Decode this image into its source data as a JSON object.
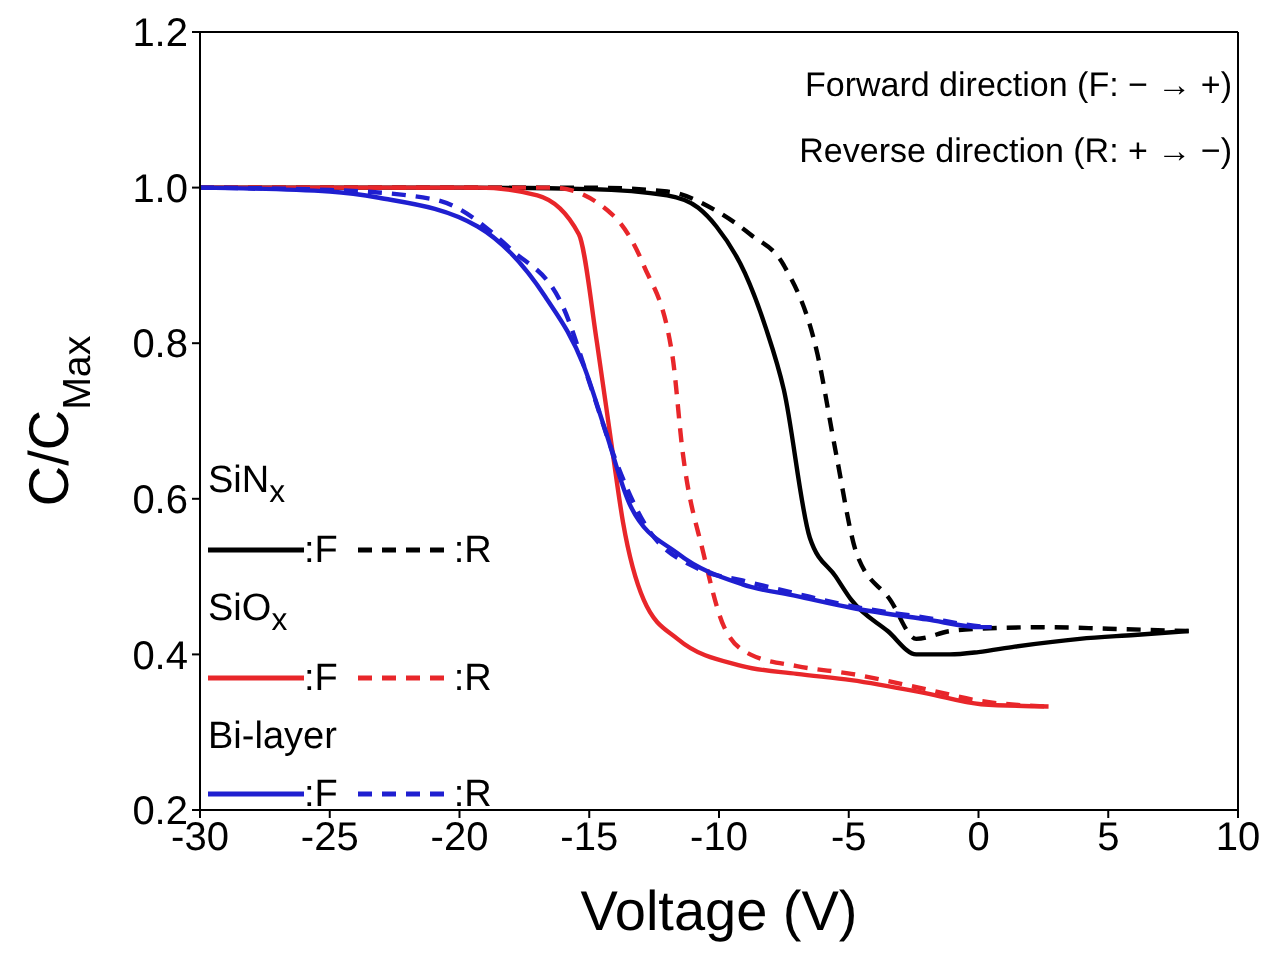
{
  "chart_data": {
    "type": "line",
    "xlabel": "Voltage (V)",
    "ylabel": "C/C$_{Max}$",
    "xlim": [
      -30,
      10
    ],
    "xticks": [
      -30,
      -25,
      -20,
      -15,
      -10,
      -5,
      0,
      5,
      10
    ],
    "ylim": [
      0.2,
      1.2
    ],
    "yticks": [
      0.2,
      0.4,
      0.6,
      0.8,
      {
        "value": 1,
        "label": "1.0"
      },
      1.2
    ],
    "legend": "bottom left",
    "marker": "none",
    "annotations": [
      "Forward direction (F: − → +)",
      "Reverse direction (R: + → −)",
      "SiN$_{x}$",
      "SiO$_{x}$",
      "Bi-layer"
    ],
    "series": [
      {
        "name": ":F",
        "color": "#000000",
        "line_style": "solid",
        "x": [
          -30,
          -20,
          -15,
          -12,
          -10.8,
          -10.1,
          -9,
          -8.2,
          -7.5,
          -6.5,
          -5.5,
          -4.9,
          -3.5,
          -2.4,
          -1.1,
          0,
          1.4,
          3.9,
          6,
          8.1
        ],
        "values": [
          1.0,
          1.0,
          0.998,
          0.99,
          0.974,
          0.95,
          0.89,
          0.82,
          0.74,
          0.55,
          0.5,
          0.47,
          0.43,
          0.4,
          0.4,
          0.403,
          0.41,
          0.42,
          0.425,
          0.43
        ]
      },
      {
        "name": ":R",
        "color": "#000000",
        "line_style": "dashed",
        "x": [
          -30,
          -20,
          -15,
          -12,
          -10.1,
          -8.8,
          -7.5,
          -6.2,
          -5.5,
          -4.7,
          -3.4,
          -2.4,
          -1.1,
          0,
          2.7,
          5,
          8.1
        ],
        "values": [
          1.0,
          1.0,
          1.0,
          0.995,
          0.97,
          0.94,
          0.9,
          0.785,
          0.66,
          0.53,
          0.47,
          0.42,
          0.43,
          0.433,
          0.435,
          0.433,
          0.43
        ]
      },
      {
        "name": ":F",
        "color": "#e8262a",
        "line_style": "solid",
        "x": [
          -30,
          -25,
          -19.3,
          -17,
          -15.4,
          -14.7,
          -14.1,
          -13.7,
          -12.9,
          -11.6,
          -9.1,
          -7,
          -4.9,
          -2,
          0.1,
          2.7
        ],
        "values": [
          1.0,
          1.0,
          1.0,
          0.99,
          0.94,
          0.8,
          0.66,
          0.57,
          0.47,
          0.42,
          0.385,
          0.375,
          0.367,
          0.35,
          0.336,
          0.333
        ]
      },
      {
        "name": ":R",
        "color": "#e8262a",
        "line_style": "dashed",
        "x": [
          -30,
          -20,
          -16.4,
          -14.1,
          -12.9,
          -11.8,
          -11.4,
          -10.6,
          -9.8,
          -8.8,
          -7,
          -4.9,
          -2,
          0.1,
          2.7
        ],
        "values": [
          1.0,
          1.0,
          1.0,
          0.965,
          0.9,
          0.785,
          0.66,
          0.53,
          0.435,
          0.4,
          0.385,
          0.375,
          0.355,
          0.34,
          0.333
        ]
      },
      {
        "name": ":F",
        "color": "#1f1fd0",
        "line_style": "solid",
        "x": [
          -30,
          -25,
          -23.1,
          -19.3,
          -16.7,
          -15.2,
          -14.4,
          -13.4,
          -11.6,
          -9.1,
          -7,
          -4.9,
          -2,
          0.1,
          0.5
        ],
        "values": [
          1.0,
          0.995,
          0.987,
          0.95,
          0.86,
          0.77,
          0.69,
          0.59,
          0.53,
          0.49,
          0.475,
          0.46,
          0.445,
          0.435,
          0.435
        ]
      },
      {
        "name": ":R",
        "color": "#1f1fd0",
        "line_style": "dashed",
        "x": [
          -30,
          -25,
          -21,
          -18,
          -16,
          -14.9,
          -14.1,
          -12.9,
          -10.8,
          -9.1,
          -7,
          -4.9,
          -2,
          0.1,
          0.5
        ],
        "values": [
          1.0,
          0.997,
          0.985,
          0.92,
          0.846,
          0.74,
          0.66,
          0.57,
          0.51,
          0.495,
          0.478,
          0.462,
          0.447,
          0.436,
          0.435
        ]
      }
    ]
  }
}
